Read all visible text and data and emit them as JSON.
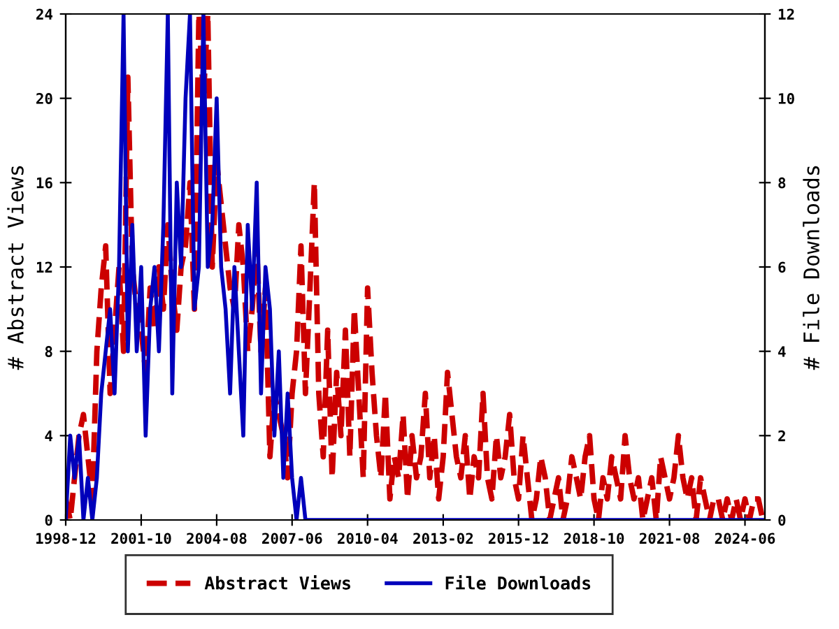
{
  "chart_data": {
    "type": "line",
    "xlabel": null,
    "ylabel": "# Abstract Views",
    "y2label": "# File Downloads",
    "x": [
      "1998-12",
      "1999-02",
      "1999-04",
      "1999-06",
      "1999-08",
      "1999-10",
      "1999-12",
      "2000-02",
      "2000-04",
      "2000-06",
      "2000-08",
      "2000-10",
      "2000-12",
      "2001-02",
      "2001-04",
      "2001-06",
      "2001-08",
      "2001-10",
      "2001-12",
      "2002-02",
      "2002-04",
      "2002-06",
      "2002-08",
      "2002-10",
      "2002-12",
      "2003-02",
      "2003-04",
      "2003-06",
      "2003-08",
      "2003-10",
      "2003-12",
      "2004-02",
      "2004-04",
      "2004-06",
      "2004-08",
      "2004-10",
      "2004-12",
      "2005-02",
      "2005-04",
      "2005-06",
      "2005-08",
      "2005-10",
      "2005-12",
      "2006-02",
      "2006-04",
      "2006-06",
      "2006-08",
      "2006-10",
      "2006-12",
      "2007-02",
      "2007-04",
      "2007-06",
      "2007-08",
      "2007-10",
      "2007-12",
      "2008-02",
      "2008-04",
      "2008-06",
      "2008-08",
      "2008-10",
      "2008-12",
      "2009-02",
      "2009-04",
      "2009-06",
      "2009-08",
      "2009-10",
      "2009-12",
      "2010-02",
      "2010-04",
      "2010-06",
      "2010-08",
      "2010-10",
      "2010-12",
      "2011-02",
      "2011-04",
      "2011-06",
      "2011-08",
      "2011-10",
      "2011-12",
      "2012-02",
      "2012-04",
      "2012-06",
      "2012-08",
      "2012-10",
      "2012-12",
      "2013-02",
      "2013-04",
      "2013-06",
      "2013-08",
      "2013-10",
      "2013-12",
      "2014-02",
      "2014-04",
      "2014-06",
      "2014-08",
      "2014-10",
      "2014-12",
      "2015-02",
      "2015-04",
      "2015-06",
      "2015-08",
      "2015-10",
      "2015-12",
      "2016-02",
      "2016-04",
      "2016-06",
      "2016-08",
      "2016-10",
      "2016-12",
      "2017-02",
      "2017-04",
      "2017-06",
      "2017-08",
      "2017-10",
      "2017-12",
      "2018-02",
      "2018-04",
      "2018-06",
      "2018-08",
      "2018-10",
      "2018-12",
      "2019-02",
      "2019-04",
      "2019-06",
      "2019-08",
      "2019-10",
      "2019-12",
      "2020-02",
      "2020-04",
      "2020-06",
      "2020-08",
      "2020-10",
      "2020-12",
      "2021-02",
      "2021-04",
      "2021-06",
      "2021-08",
      "2021-10",
      "2021-12",
      "2022-02",
      "2022-04",
      "2022-06",
      "2022-08",
      "2022-10",
      "2022-12",
      "2023-02",
      "2023-04",
      "2023-06",
      "2023-08",
      "2023-10",
      "2023-12",
      "2024-02",
      "2024-04",
      "2024-06",
      "2024-08",
      "2024-10",
      "2024-12",
      "2025-02"
    ],
    "series": [
      {
        "name": "Abstract Views",
        "color": "#cc0000",
        "line_style": "dashed",
        "values": [
          1,
          0,
          2,
          4,
          5,
          3,
          1,
          8,
          11,
          13,
          6,
          9,
          12,
          8,
          21,
          12,
          10,
          9,
          7,
          11,
          9,
          12,
          10,
          14,
          11,
          9,
          12,
          13,
          16,
          10,
          24,
          20,
          24,
          12,
          17,
          15,
          13,
          11,
          10,
          14,
          12,
          8,
          10,
          13,
          8,
          11,
          3,
          6,
          5,
          4,
          2,
          6,
          8,
          13,
          6,
          11,
          16,
          6,
          3,
          9,
          2,
          7,
          4,
          9,
          3,
          10,
          6,
          2,
          11,
          7,
          4,
          2,
          6,
          1,
          3,
          2,
          5,
          1,
          4,
          2,
          3,
          6,
          2,
          4,
          1,
          3,
          7,
          5,
          3,
          2,
          4,
          1,
          3,
          2,
          6,
          2,
          1,
          4,
          2,
          3,
          5,
          2,
          1,
          4,
          2,
          0,
          1,
          3,
          2,
          0,
          1,
          2,
          0,
          1,
          3,
          2,
          1,
          3,
          4,
          1,
          0,
          2,
          1,
          3,
          2,
          1,
          4,
          2,
          1,
          2,
          0,
          1,
          2,
          0,
          3,
          2,
          1,
          2,
          4,
          2,
          1,
          2,
          0,
          2,
          1,
          0,
          1,
          1,
          0,
          1,
          0,
          1,
          0,
          1,
          0,
          1,
          1,
          0
        ]
      },
      {
        "name": "File Downloads",
        "color": "#0000bb",
        "line_style": "solid",
        "axis": "y2",
        "values": [
          0,
          2,
          1,
          2,
          0,
          1,
          0,
          1,
          3,
          4,
          5,
          3,
          6,
          12,
          4,
          7,
          4,
          6,
          2,
          5,
          6,
          4,
          7,
          12,
          3,
          8,
          6,
          10,
          12,
          5,
          6,
          12,
          6,
          7,
          10,
          6,
          5,
          3,
          6,
          4,
          2,
          7,
          5,
          8,
          3,
          6,
          5,
          2,
          4,
          1,
          3,
          1,
          0,
          1,
          0,
          0,
          0,
          0,
          0,
          0,
          0,
          0,
          0,
          0,
          0,
          0,
          0,
          0,
          0,
          0,
          0,
          0,
          0,
          0,
          0,
          0,
          0,
          0,
          0,
          0,
          0,
          0,
          0,
          0,
          0,
          0,
          0,
          0,
          0,
          0,
          0,
          0,
          0,
          0,
          0,
          0,
          0,
          0,
          0,
          0,
          0,
          0,
          0,
          0,
          0,
          0,
          0,
          0,
          0,
          0,
          0,
          0,
          0,
          0,
          0,
          0,
          0,
          0,
          0,
          0,
          0,
          0,
          0,
          0,
          0,
          0,
          0,
          0,
          0,
          0,
          0,
          0,
          0,
          0,
          0,
          0,
          0,
          0,
          0,
          0,
          0,
          0,
          0,
          0,
          0,
          0,
          0,
          0,
          0,
          0,
          0,
          0,
          0,
          0,
          0,
          0,
          0,
          0
        ]
      }
    ],
    "xlim": [
      "1998-12",
      "2025-03"
    ],
    "xticks": [
      "1998-12",
      "2001-10",
      "2004-08",
      "2007-06",
      "2010-04",
      "2013-02",
      "2015-12",
      "2018-10",
      "2021-08",
      "2024-06"
    ],
    "ylim": [
      0,
      24
    ],
    "yticks": [
      0,
      4,
      8,
      12,
      16,
      20,
      24
    ],
    "y2lim": [
      0,
      12
    ],
    "y2ticks": [
      0,
      2,
      4,
      6,
      8,
      10,
      12
    ],
    "grid": false,
    "legend": "bottom",
    "marker": "none"
  }
}
